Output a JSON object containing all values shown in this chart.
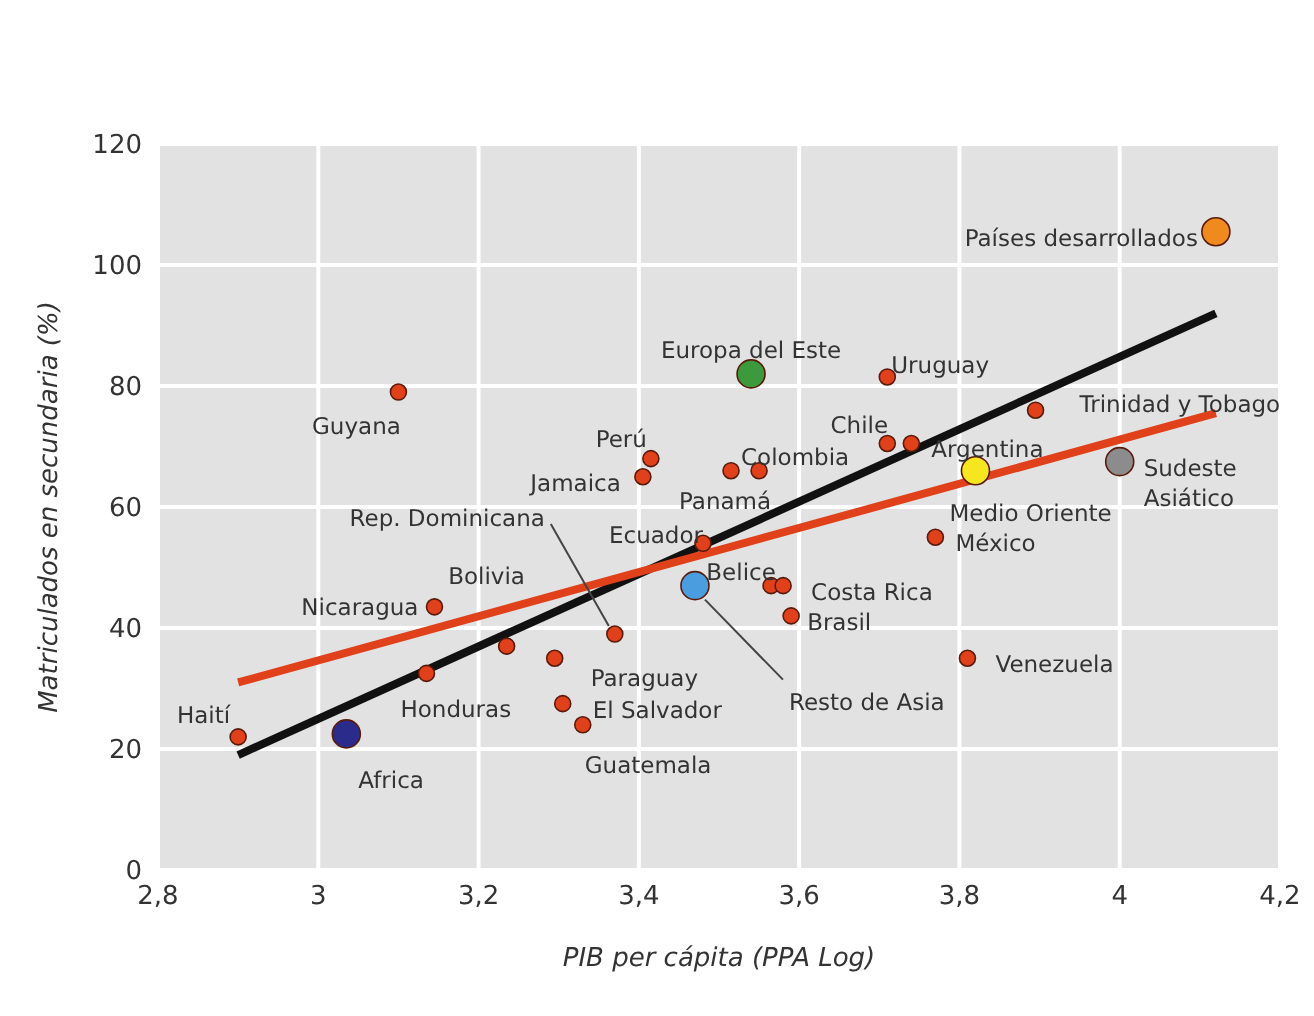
{
  "chart_data": {
    "type": "scatter",
    "xlabel": "PIB per cápita (PPA Log)",
    "ylabel": "Matriculados en secundaria (%)",
    "xlim": [
      2.8,
      4.2
    ],
    "xticks": [
      {
        "value": 2.8,
        "label": "2,8"
      },
      3,
      {
        "value": 3.2,
        "label": "3,2"
      },
      {
        "value": 3.4,
        "label": "3,4"
      },
      {
        "value": 3.6,
        "label": "3,6"
      },
      {
        "value": 3.8,
        "label": "3,8"
      },
      4,
      {
        "value": 4.2,
        "label": "4,2"
      }
    ],
    "ylim": [
      0,
      120
    ],
    "yticks": [
      0,
      20,
      40,
      60,
      80,
      100,
      120
    ],
    "grid": true,
    "marker": "circle",
    "legend": false,
    "series": [
      {
        "color": "#e0401a",
        "x": [
          2.9,
          3.135,
          3.145,
          3.235,
          3.295,
          3.305,
          3.33,
          3.37,
          3.405,
          3.415,
          3.1,
          3.48,
          3.515,
          3.55,
          3.71,
          3.71,
          3.74,
          3.895,
          3.77,
          3.565,
          3.58,
          3.59,
          3.81
        ],
        "values": [
          22,
          32.5,
          43.5,
          37,
          35,
          27.5,
          24,
          39,
          65,
          68,
          79,
          54,
          66,
          66,
          81.5,
          70.5,
          70.5,
          76,
          55,
          47,
          47,
          42,
          35
        ]
      },
      {
        "colors": [
          "#2b2b8c",
          "#3c9a3c",
          "#f5e620",
          "#8c8c8c",
          "#f08a1e",
          "#4a9ee0"
        ],
        "x": [
          3.035,
          3.54,
          3.82,
          4.0,
          4.12,
          3.47
        ],
        "values": [
          22.5,
          82,
          66,
          67.5,
          105.5,
          47
        ]
      },
      {
        "type": "line",
        "marker": "none",
        "color": "#111111",
        "x": [
          2.9,
          4.12
        ],
        "values": [
          19,
          92
        ]
      },
      {
        "type": "line",
        "marker": "none",
        "color": "#e0401a",
        "x": [
          2.9,
          4.12
        ],
        "values": [
          31,
          75.5
        ]
      }
    ],
    "annotations": [
      {
        "text": "Haití",
        "x": 2.9,
        "y": 22
      },
      {
        "text": "Honduras",
        "x": 3.135,
        "y": 32.5
      },
      {
        "text": "Nicaragua",
        "x": 3.145,
        "y": 43.5
      },
      {
        "text": "Bolivia",
        "x": 3.235,
        "y": 37
      },
      {
        "text": "Paraguay",
        "x": 3.295,
        "y": 35
      },
      {
        "text": "El Salvador",
        "x": 3.305,
        "y": 27.5
      },
      {
        "text": "Guatemala",
        "x": 3.33,
        "y": 24
      },
      {
        "text": "Rep. Dominicana",
        "x": 3.37,
        "y": 39
      },
      {
        "text": "Jamaica",
        "x": 3.405,
        "y": 65
      },
      {
        "text": "Perú",
        "x": 3.415,
        "y": 68
      },
      {
        "text": "Guyana",
        "x": 3.1,
        "y": 79
      },
      {
        "text": "Ecuador",
        "x": 3.48,
        "y": 54
      },
      {
        "text": "Panamá",
        "x": 3.515,
        "y": 66
      },
      {
        "text": "Colombia",
        "x": 3.55,
        "y": 66
      },
      {
        "text": "Uruguay",
        "x": 3.71,
        "y": 81.5
      },
      {
        "text": "Chile",
        "x": 3.71,
        "y": 70.5
      },
      {
        "text": "Argentina",
        "x": 3.74,
        "y": 70.5
      },
      {
        "text": "Trinidad y Tobago",
        "x": 3.895,
        "y": 76
      },
      {
        "text": "México",
        "x": 3.77,
        "y": 55
      },
      {
        "text": "Belice",
        "x": 3.565,
        "y": 47
      },
      {
        "text": "Costa Rica",
        "x": 3.58,
        "y": 47
      },
      {
        "text": "Brasil",
        "x": 3.59,
        "y": 42
      },
      {
        "text": "Venezuela",
        "x": 3.81,
        "y": 35
      },
      {
        "text": "Africa",
        "x": 3.035,
        "y": 22.5
      },
      {
        "text": "Europa del Este",
        "x": 3.54,
        "y": 82
      },
      {
        "text": "Medio Oriente",
        "x": 3.82,
        "y": 66
      },
      {
        "text": "Sudeste Asiático",
        "x": 4.0,
        "y": 67.5
      },
      {
        "text": "Países desarrollados",
        "x": 4.12,
        "y": 105.5
      },
      {
        "text": "Resto de Asia",
        "x": 3.47,
        "y": 47
      }
    ]
  }
}
